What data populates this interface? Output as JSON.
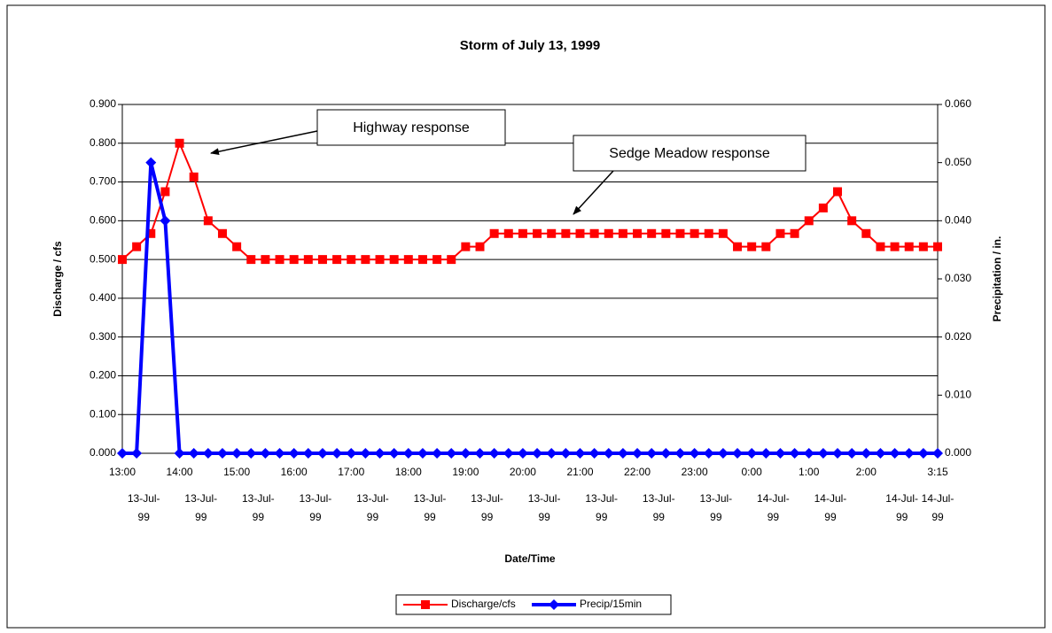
{
  "chart_data": {
    "type": "line",
    "title": "Storm of July 13, 1999",
    "x_label": "Date/Time",
    "y_label": "Discharge / cfs",
    "y2_label": "Precipitation / in.",
    "categories": [
      "13:00",
      null,
      null,
      null,
      "14:00",
      null,
      null,
      null,
      "15:00",
      null,
      null,
      null,
      "16:00",
      null,
      null,
      null,
      "17:00",
      null,
      null,
      null,
      "18:00",
      null,
      null,
      null,
      "19:00",
      null,
      null,
      null,
      "20:00",
      null,
      null,
      null,
      "21:00",
      null,
      null,
      null,
      "22:00",
      null,
      null,
      null,
      "23:00",
      null,
      null,
      null,
      "0:00",
      null,
      null,
      null,
      "1:00",
      null,
      null,
      null,
      "2:00",
      null,
      null,
      null,
      null,
      "3:15"
    ],
    "date_ticks": [
      {
        "value": 1.5,
        "label": "13-Jul-99"
      },
      {
        "value": 5.5,
        "label": "13-Jul-99"
      },
      {
        "value": 9.5,
        "label": "13-Jul-99"
      },
      {
        "value": 13.5,
        "label": "13-Jul-99"
      },
      {
        "value": 17.5,
        "label": "13-Jul-99"
      },
      {
        "value": 21.5,
        "label": "13-Jul-99"
      },
      {
        "value": 25.5,
        "label": "13-Jul-99"
      },
      {
        "value": 29.5,
        "label": "13-Jul-99"
      },
      {
        "value": 33.5,
        "label": "13-Jul-99"
      },
      {
        "value": 37.5,
        "label": "13-Jul-99"
      },
      {
        "value": 41.5,
        "label": "13-Jul-99"
      },
      {
        "value": 45.5,
        "label": "14-Jul-99"
      },
      {
        "value": 49.5,
        "label": "14-Jul-99"
      },
      {
        "value": 54.5,
        "label": "14-Jul-99"
      },
      {
        "value": 57,
        "label": "14-Jul-99"
      }
    ],
    "series": [
      {
        "name": "Discharge/cfs",
        "color": "#ff0000",
        "marker": "square",
        "values": [
          0.5,
          0.533,
          0.567,
          0.675,
          0.8,
          0.713,
          0.6,
          0.567,
          0.533,
          0.5,
          0.5,
          0.5,
          0.5,
          0.5,
          0.5,
          0.5,
          0.5,
          0.5,
          0.5,
          0.5,
          0.5,
          0.5,
          0.5,
          0.5,
          0.533,
          0.533,
          0.567,
          0.567,
          0.567,
          0.567,
          0.567,
          0.567,
          0.567,
          0.567,
          0.567,
          0.567,
          0.567,
          0.567,
          0.567,
          0.567,
          0.567,
          0.567,
          0.567,
          0.533,
          0.533,
          0.533,
          0.567,
          0.567,
          0.6,
          0.633,
          0.675,
          0.6,
          0.567,
          0.533,
          0.533,
          0.533,
          0.533,
          0.533
        ]
      },
      {
        "name": "Precip/15min",
        "color": "#0000ff",
        "marker": "diamond",
        "axis": "y2",
        "values": [
          0,
          0,
          0.05,
          0.04,
          0,
          0,
          0,
          0,
          0,
          0,
          0,
          0,
          0,
          0,
          0,
          0,
          0,
          0,
          0,
          0,
          0,
          0,
          0,
          0,
          0,
          0,
          0,
          0,
          0,
          0,
          0,
          0,
          0,
          0,
          0,
          0,
          0,
          0,
          0,
          0,
          0,
          0,
          0,
          0,
          0,
          0,
          0,
          0,
          0,
          0,
          0,
          0,
          0,
          0,
          0,
          0,
          0,
          0
        ]
      }
    ],
    "ylim": [
      0,
      0.9
    ],
    "yticks": [
      {
        "value": 0,
        "label": "0.000"
      },
      {
        "value": 0.1,
        "label": "0.100"
      },
      {
        "value": 0.2,
        "label": "0.200"
      },
      {
        "value": 0.3,
        "label": "0.300"
      },
      {
        "value": 0.4,
        "label": "0.400"
      },
      {
        "value": 0.5,
        "label": "0.500"
      },
      {
        "value": 0.6,
        "label": "0.600"
      },
      {
        "value": 0.7,
        "label": "0.700"
      },
      {
        "value": 0.8,
        "label": "0.800"
      },
      {
        "value": 0.9,
        "label": "0.900"
      }
    ],
    "y2lim": [
      0,
      0.06
    ],
    "y2ticks": [
      {
        "value": 0,
        "label": "0.000"
      },
      {
        "value": 0.01,
        "label": "0.010"
      },
      {
        "value": 0.02,
        "label": "0.020"
      },
      {
        "value": 0.03,
        "label": "0.030"
      },
      {
        "value": 0.04,
        "label": "0.040"
      },
      {
        "value": 0.05,
        "label": "0.050"
      },
      {
        "value": 0.06,
        "label": "0.060"
      }
    ],
    "grid": true,
    "legend": "bottom",
    "annotations": [
      "Highway response",
      "Sedge Meadow response"
    ]
  }
}
